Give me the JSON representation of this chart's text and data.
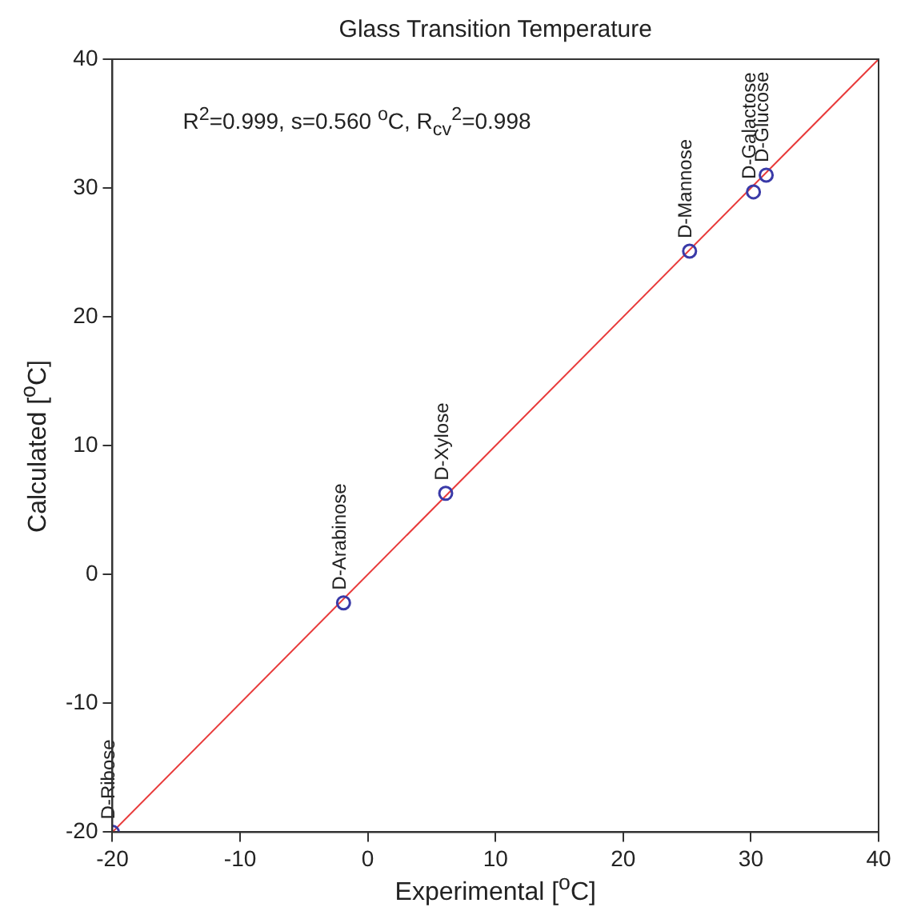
{
  "chart_data": {
    "type": "scatter",
    "title": "Glass Transition Temperature",
    "xlabel": "Experimental [$^{o}$C]",
    "ylabel": "Calculated [$^{o}$C]",
    "xlim": [
      -20,
      40
    ],
    "xticks": [
      -20,
      -10,
      0,
      10,
      20,
      30,
      40
    ],
    "ylim": [
      -20,
      40
    ],
    "yticks": [
      -20,
      -10,
      0,
      10,
      20,
      30,
      40
    ],
    "grid": false,
    "legend": false,
    "series": [
      {
        "marker": "circle",
        "color": "#3a3aa8",
        "x": [
          -20,
          -1.9,
          6.1,
          25.2,
          30.2,
          31.2
        ],
        "values": [
          -20,
          -2.2,
          6.3,
          25.1,
          29.7,
          31.0
        ]
      },
      {
        "type": "line",
        "color": "#e83a3a",
        "x": [
          -20,
          40
        ],
        "values": [
          -20,
          40
        ]
      }
    ],
    "annotations": [
      "R$^{2}$=0.999, s=0.560 $^{o}$C, R$_{cv}$$^{2}$=0.998",
      {
        "text": "D-Ribose",
        "x": -20,
        "y": -20
      },
      {
        "text": "D-Arabinose",
        "x": -1.9,
        "y": -2.2
      },
      {
        "text": "D-Xylose",
        "x": 6.1,
        "y": 6.3
      },
      {
        "text": "D-Mannose",
        "x": 25.2,
        "y": 25.1
      },
      {
        "text": "D-Galactose",
        "x": 30.2,
        "y": 29.7
      },
      {
        "text": "D-Glucose",
        "x": 31.2,
        "y": 31.0
      }
    ]
  }
}
